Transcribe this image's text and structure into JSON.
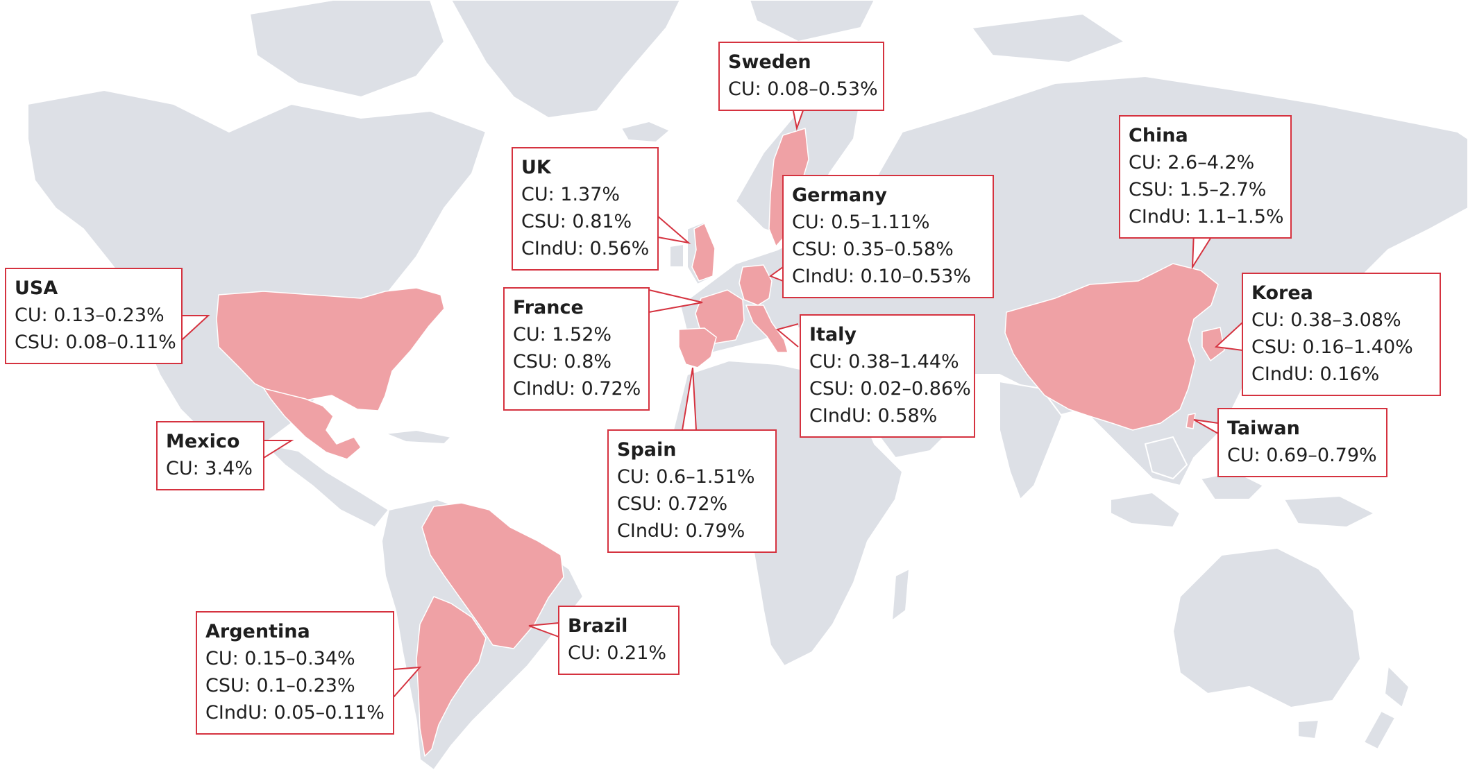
{
  "colors": {
    "ocean": "#ffffff",
    "land": "#dde0e6",
    "borders": "#ffffff",
    "highlight": "#efa1a5",
    "callout_border": "#d5323f",
    "text": "#1e1e1e"
  },
  "countries": [
    {
      "key": "usa",
      "name": "USA",
      "stats": [
        "CU: 0.13–0.23%",
        "CSU: 0.08–0.11%"
      ]
    },
    {
      "key": "mexico",
      "name": "Mexico",
      "stats": [
        "CU: 3.4%"
      ]
    },
    {
      "key": "uk",
      "name": "UK",
      "stats": [
        "CU: 1.37%",
        "CSU: 0.81%",
        "CIndU: 0.56%"
      ]
    },
    {
      "key": "sweden",
      "name": "Sweden",
      "stats": [
        "CU: 0.08–0.53%"
      ]
    },
    {
      "key": "germany",
      "name": "Germany",
      "stats": [
        "CU: 0.5–1.11%",
        "CSU: 0.35–0.58%",
        "CIndU: 0.10–0.53%"
      ]
    },
    {
      "key": "france",
      "name": "France",
      "stats": [
        "CU: 1.52%",
        "CSU: 0.8%",
        "CIndU: 0.72%"
      ]
    },
    {
      "key": "italy",
      "name": "Italy",
      "stats": [
        "CU: 0.38–1.44%",
        "CSU: 0.02–0.86%",
        "CIndU: 0.58%"
      ]
    },
    {
      "key": "spain",
      "name": "Spain",
      "stats": [
        "CU: 0.6–1.51%",
        "CSU: 0.72%",
        "CIndU: 0.79%"
      ]
    },
    {
      "key": "china",
      "name": "China",
      "stats": [
        "CU: 2.6–4.2%",
        "CSU: 1.5–2.7%",
        "CIndU: 1.1–1.5%"
      ]
    },
    {
      "key": "korea",
      "name": "Korea",
      "stats": [
        "CU: 0.38–3.08%",
        "CSU: 0.16–1.40%",
        "CIndU: 0.16%"
      ]
    },
    {
      "key": "taiwan",
      "name": "Taiwan",
      "stats": [
        "CU: 0.69–0.79%"
      ]
    },
    {
      "key": "brazil",
      "name": "Brazil",
      "stats": [
        "CU: 0.21%"
      ]
    },
    {
      "key": "argentina",
      "name": "Argentina",
      "stats": [
        "CU: 0.15–0.34%",
        "CSU: 0.1–0.23%",
        "CIndU: 0.05–0.11%"
      ]
    }
  ]
}
